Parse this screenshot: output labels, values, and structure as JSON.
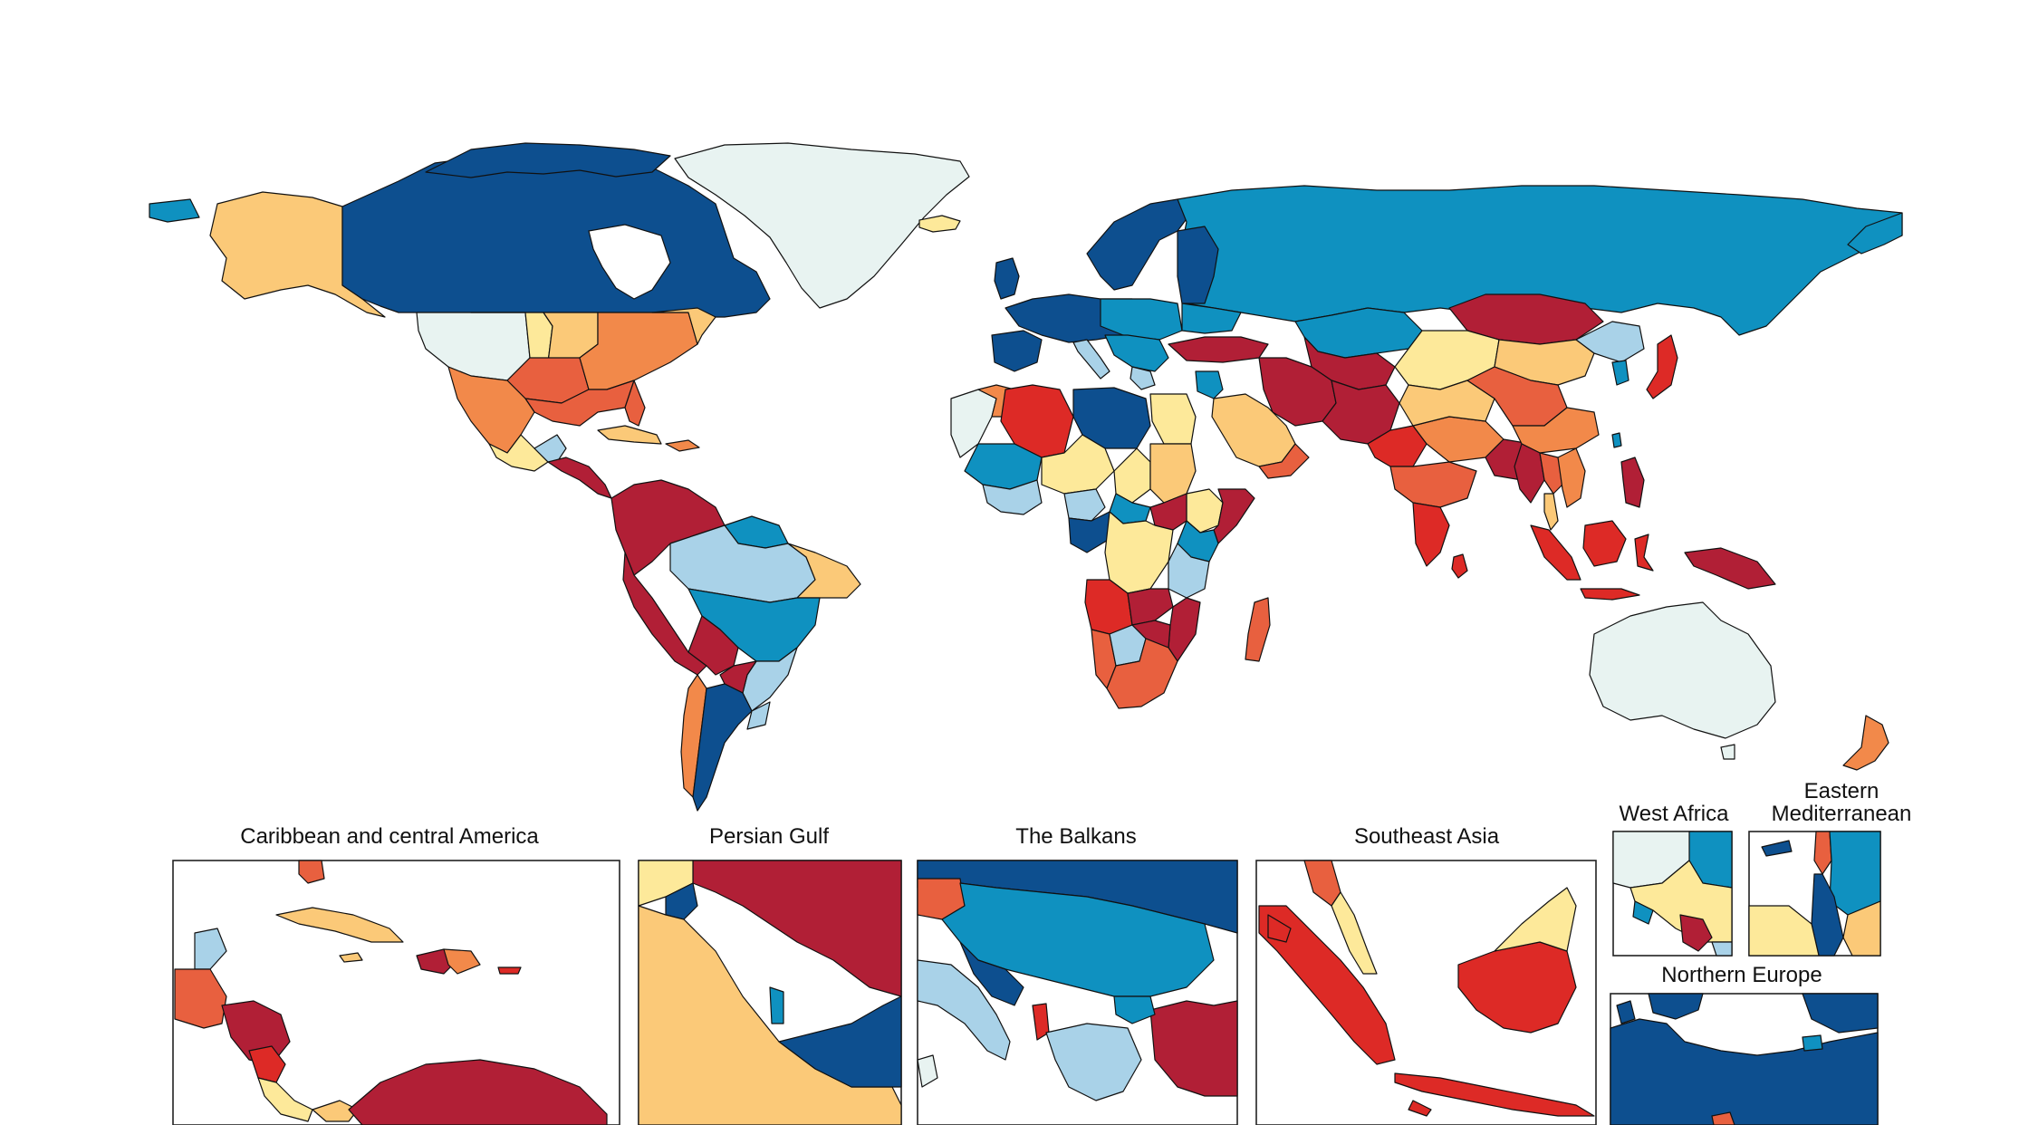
{
  "colors": {
    "dark_blue": "#0d4f8f",
    "mid_blue": "#0f91c0",
    "light_blue": "#a9d2e8",
    "pale": "#e8f3f1",
    "light_yellow": "#fde99a",
    "orange_yellow": "#fbc978",
    "orange": "#f2894a",
    "red_orange": "#e8603f",
    "red": "#dd2a26",
    "dark_red": "#b11f36"
  },
  "insets": [
    {
      "id": "caribbean",
      "title": "Caribbean and central America"
    },
    {
      "id": "persian-gulf",
      "title": "Persian Gulf"
    },
    {
      "id": "balkans",
      "title": "The Balkans"
    },
    {
      "id": "southeast-asia",
      "title": "Southeast Asia"
    },
    {
      "id": "west-africa",
      "title": "West Africa"
    },
    {
      "id": "eastern-mediterranean",
      "title_line1": "Eastern",
      "title_line2": "Mediterranean"
    },
    {
      "id": "northern-europe",
      "title": "Northern Europe"
    }
  ]
}
